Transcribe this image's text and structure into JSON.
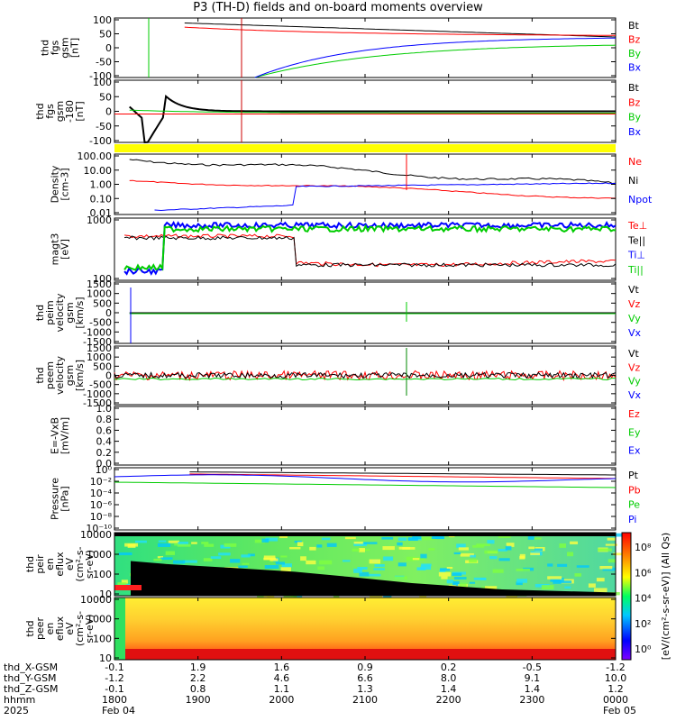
{
  "title": "P3 (TH-D) fields and on-board moments overview",
  "chart_data": {
    "type": "line",
    "x_ticks": [
      "1800",
      "1900",
      "2000",
      "2100",
      "2200",
      "2300",
      "0000"
    ],
    "x_date_left": "Feb 04",
    "x_date_right": "Feb 05",
    "x_year": "2025",
    "ephemeris": {
      "labels": [
        "thd_X-GSM",
        "thd_Y-GSM",
        "thd_Z-GSM",
        "hhmm"
      ],
      "columns": [
        [
          "-0.1",
          "-1.2",
          "-0.1"
        ],
        [
          "1.9",
          "2.2",
          "0.8"
        ],
        [
          "1.6",
          "4.6",
          "1.1"
        ],
        [
          "0.9",
          "6.6",
          "1.3"
        ],
        [
          "0.2",
          "8.0",
          "1.4"
        ],
        [
          "-0.5",
          "9.1",
          "1.4"
        ],
        [
          "-1.2",
          "10.0",
          "1.2"
        ]
      ]
    },
    "panels": [
      {
        "id": "fgs",
        "ylabel": [
          "thd",
          "fgs",
          "gsm",
          "[nT]"
        ],
        "yticks": [
          "100",
          "50",
          "0",
          "-50",
          "-100"
        ],
        "legend": [
          {
            "label": "Bt",
            "color": "#000000"
          },
          {
            "label": "Bz",
            "color": "#ff0000"
          },
          {
            "label": "By",
            "color": "#00cc00"
          },
          {
            "label": "Bx",
            "color": "#0000ff"
          }
        ]
      },
      {
        "id": "fgs-dsl",
        "ylabel": [
          "thd",
          "fgs",
          "gsm",
          "-180",
          "[nT]"
        ],
        "yticks": [
          "100",
          "50",
          "0",
          "-50",
          "-100"
        ],
        "legend": [
          {
            "label": "Bt",
            "color": "#000000"
          },
          {
            "label": "Bz",
            "color": "#ff0000"
          },
          {
            "label": "By",
            "color": "#00cc00"
          },
          {
            "label": "Bx",
            "color": "#0000ff"
          }
        ]
      },
      {
        "id": "density",
        "ylabel": [
          "Density",
          "[cm-3]"
        ],
        "yticks": [
          "100.00",
          "10.00",
          "1.00",
          "0.10",
          "0.01"
        ],
        "legend": [
          {
            "label": "Ne",
            "color": "#ff0000"
          },
          {
            "label": "Ni",
            "color": "#000000"
          },
          {
            "label": "Npot",
            "color": "#0000ff"
          }
        ]
      },
      {
        "id": "temp",
        "ylabel": [
          "magt3",
          "[eV]"
        ],
        "yticks": [
          "1000",
          "100"
        ],
        "legend": [
          {
            "label": "Te⊥",
            "color": "#ff0000"
          },
          {
            "label": "Te||",
            "color": "#000000"
          },
          {
            "label": "Ti⊥",
            "color": "#0000ff"
          },
          {
            "label": "Ti||",
            "color": "#00cc00"
          }
        ]
      },
      {
        "id": "peim-vel",
        "ylabel": [
          "thd",
          "peim",
          "velocity",
          "gsm",
          "[km/s]"
        ],
        "yticks": [
          "1500",
          "1000",
          "500",
          "0",
          "-500",
          "-1000",
          "-1500"
        ],
        "legend": [
          {
            "label": "Vt",
            "color": "#000000"
          },
          {
            "label": "Vz",
            "color": "#ff0000"
          },
          {
            "label": "Vy",
            "color": "#00cc00"
          },
          {
            "label": "Vx",
            "color": "#0000ff"
          }
        ]
      },
      {
        "id": "peem-vel",
        "ylabel": [
          "thd",
          "peem",
          "velocity",
          "gsm",
          "[km/s]"
        ],
        "yticks": [
          "1500",
          "1000",
          "500",
          "0",
          "-500",
          "-1000",
          "-1500"
        ],
        "legend": [
          {
            "label": "Vt",
            "color": "#000000"
          },
          {
            "label": "Vz",
            "color": "#ff0000"
          },
          {
            "label": "Vy",
            "color": "#00cc00"
          },
          {
            "label": "Vx",
            "color": "#0000ff"
          }
        ]
      },
      {
        "id": "efield",
        "ylabel": [
          "E=-VxB",
          "[mV/m]"
        ],
        "yticks": [
          "1.0",
          "0.8",
          "0.6",
          "0.4",
          "0.2",
          "0.0"
        ],
        "legend": [
          {
            "label": "Ez",
            "color": "#ff0000"
          },
          {
            "label": "Ey",
            "color": "#00cc00"
          },
          {
            "label": "Ex",
            "color": "#0000ff"
          }
        ]
      },
      {
        "id": "pressure",
        "ylabel": [
          "Pressure",
          "[nPa]"
        ],
        "yticks": [
          "10⁰",
          "10⁻²",
          "10⁻⁴",
          "10⁻⁶",
          "10⁻⁸",
          "10⁻¹⁰"
        ],
        "legend": [
          {
            "label": "Pt",
            "color": "#000000"
          },
          {
            "label": "Pb",
            "color": "#ff0000"
          },
          {
            "label": "Pe",
            "color": "#00cc00"
          },
          {
            "label": "Pi",
            "color": "#0000ff"
          }
        ]
      },
      {
        "id": "peir-spec",
        "ylabel": [
          "thd",
          "peir",
          "en",
          "eflux",
          "eV",
          "(cm²-s-",
          "sr-eV)"
        ],
        "yticks": [
          "10000",
          "1000",
          "100",
          "10"
        ],
        "legend": []
      },
      {
        "id": "peer-spec",
        "ylabel": [
          "thd",
          "peer",
          "en",
          "eflux",
          "eV",
          "(cm²-s-",
          "sr-eV)"
        ],
        "yticks": [
          "10000",
          "1000",
          "100",
          "10"
        ],
        "legend": []
      }
    ],
    "colorbar": {
      "label": "[eV/(cm²-s-sr-eV)] (All Qs)",
      "ticks": [
        "10⁸",
        "10⁶",
        "10⁴",
        "10²",
        "10⁰"
      ]
    }
  }
}
